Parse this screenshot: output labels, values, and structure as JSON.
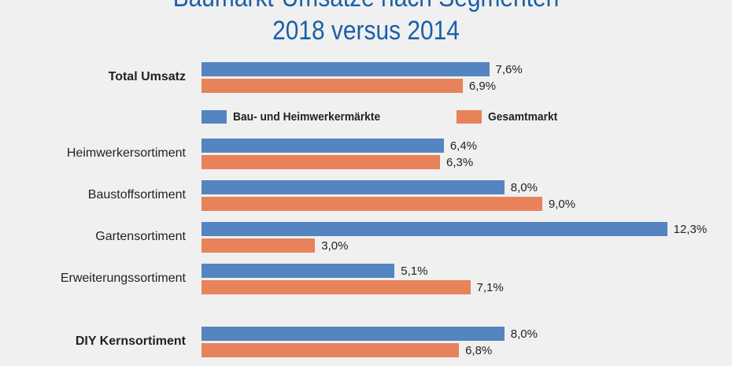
{
  "chart_data": {
    "type": "bar",
    "orientation": "horizontal",
    "title": "Baumarkt-Umsätze nach Segmenten",
    "subtitle": "2018 versus 2014",
    "categories": [
      "Total Umsatz",
      "Heimwerkersortiment",
      "Baustoffsortiment",
      "Gartensortiment",
      "Erweiterungssortiment",
      "DIY Kernsortiment"
    ],
    "bold_categories": [
      "Total Umsatz",
      "DIY Kernsortiment"
    ],
    "series": [
      {
        "name": "Bau- und Heimwerkermärkte",
        "color": "#5585c0",
        "values": [
          7.6,
          6.4,
          8.0,
          12.3,
          5.1,
          8.0
        ],
        "labels": [
          "7,6%",
          "6,4%",
          "8,0%",
          "12,3%",
          "5,1%",
          "8,0%"
        ]
      },
      {
        "name": "Gesamtmarkt",
        "color": "#e8825a",
        "values": [
          6.9,
          6.3,
          9.0,
          3.0,
          7.1,
          6.8
        ],
        "labels": [
          "6,9%",
          "6,3%",
          "9,0%",
          "3,0%",
          "7,1%",
          "6,8%"
        ]
      }
    ],
    "unit": "%",
    "grid": false,
    "legend_placement": "below first category"
  }
}
